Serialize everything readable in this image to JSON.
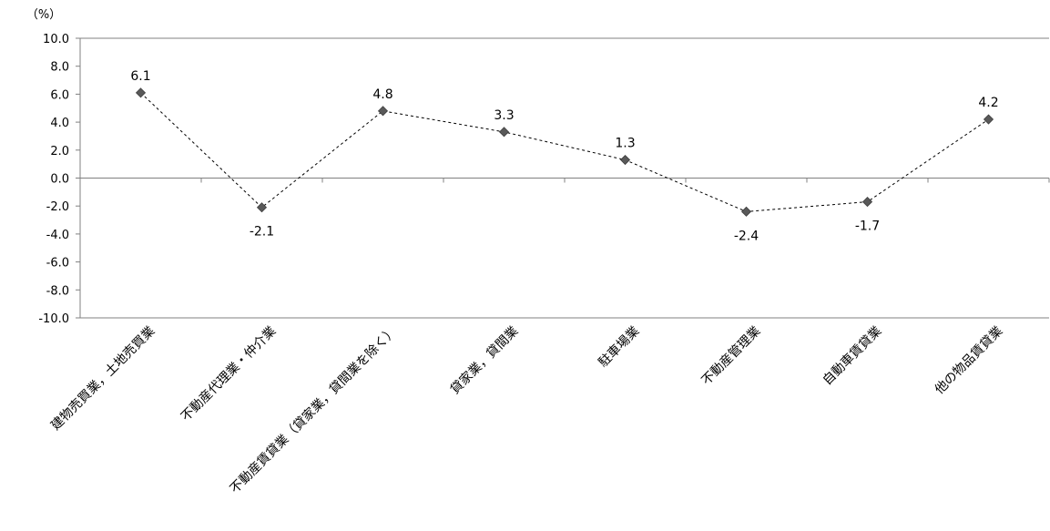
{
  "chart_data": {
    "type": "line",
    "title": "",
    "xlabel": "",
    "ylabel": "",
    "unit": "（%）",
    "categories": [
      "建物売買業，土地売買業",
      "不動産代理業・仲介業",
      "不動産賃貸業（貸家業，貸間業を除く）",
      "貸家業，貸間業",
      "駐車場業",
      "不動産管理業",
      "自動車賃貸業",
      "他の物品賃貸業"
    ],
    "values": [
      6.1,
      -2.1,
      4.8,
      3.3,
      1.3,
      -2.4,
      -1.7,
      4.2
    ],
    "data_labels": [
      "6.1",
      "-2.1",
      "4.8",
      "3.3",
      "1.3",
      "-2.4",
      "-1.7",
      "4.2"
    ],
    "ylim": [
      -10,
      10
    ],
    "yticks": [
      10,
      8,
      6,
      4,
      2,
      0,
      -2,
      -4,
      -6,
      -8,
      -10
    ],
    "ytick_labels": [
      "10.0",
      "8.0",
      "6.0",
      "4.0",
      "2.0",
      "0.0",
      "-2.0",
      "-4.0",
      "-6.0",
      "-8.0",
      "-10.0"
    ],
    "grid": false,
    "line_style": "dashed",
    "marker": "diamond",
    "colors": {
      "line": "#000000",
      "marker": "#595959",
      "axis": "#808080"
    }
  }
}
